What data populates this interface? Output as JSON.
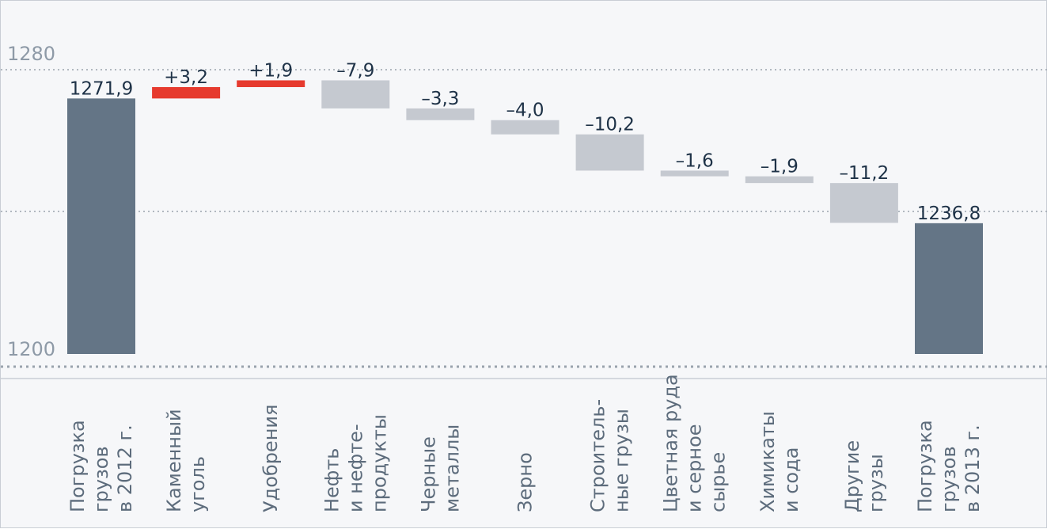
{
  "chart_data": {
    "type": "bar",
    "variant": "waterfall",
    "title": "",
    "xlabel": "",
    "ylabel": "",
    "ylim": [
      1200,
      1280
    ],
    "yticks": [
      1200,
      1280
    ],
    "grid": true,
    "categories": [
      [
        "Погрузка",
        "грузов",
        "в 2012 г."
      ],
      [
        "Каменный",
        "уголь"
      ],
      [
        "Удобрения"
      ],
      [
        "Нефть",
        "и нефте-",
        "продукты"
      ],
      [
        "Черные",
        "металлы"
      ],
      [
        "Зерно"
      ],
      [
        "Строитель-",
        "ные грузы"
      ],
      [
        "Цветная руда",
        "и серное",
        "сырье"
      ],
      [
        "Химикаты",
        "и сода"
      ],
      [
        "Другие",
        "грузы"
      ],
      [
        "Погрузка",
        "грузов",
        "в 2013 г."
      ]
    ],
    "values": [
      1271.9,
      3.2,
      1.9,
      -7.9,
      -3.3,
      -4.0,
      -10.2,
      -1.6,
      -1.9,
      -11.2,
      1236.8
    ],
    "kinds": [
      "total",
      "delta",
      "delta",
      "delta",
      "delta",
      "delta",
      "delta",
      "delta",
      "delta",
      "delta",
      "total"
    ],
    "value_labels": [
      "1271,9",
      "+3,2",
      "+1,9",
      "–7,9",
      "–3,3",
      "–4,0",
      "–10,2",
      "–1,6",
      "–1,9",
      "–11,2",
      "1236,8"
    ],
    "tick_labels": [
      "1200",
      "1280"
    ],
    "colors": {
      "total": "#647586",
      "increase": "#e63a2e",
      "decrease": "#c5c9d0",
      "grid": "#9aa3ad",
      "background": "#f6f7f9",
      "tick_text": "#8e9aa7",
      "category_text": "#5d6c7c",
      "value_text": "#1e3247"
    }
  }
}
